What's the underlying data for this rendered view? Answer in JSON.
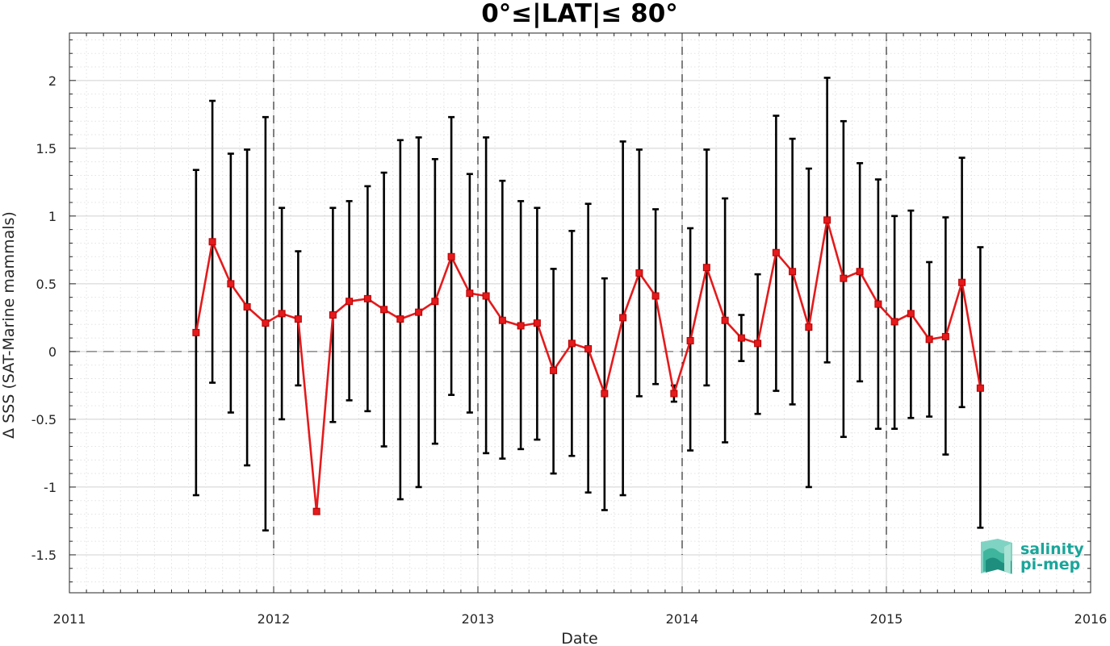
{
  "chart_data": {
    "type": "line",
    "title": "0°≤|LAT|≤ 80°",
    "xlabel": "Date",
    "ylabel": "Δ SSS (SAT-Marine mammals)",
    "xlim": [
      2011,
      2016
    ],
    "ylim": [
      -1.78,
      2.35
    ],
    "x_ticks": [
      "2011",
      "2012",
      "2013",
      "2014",
      "2015",
      "2016"
    ],
    "y_ticks": [
      "-1.5",
      "-1",
      "-0.5",
      "0",
      "0.5",
      "1",
      "1.5",
      "2"
    ],
    "grid": "on",
    "series": [
      {
        "color": "#e41a1c",
        "marker": "square",
        "x": [
          2011.62,
          2011.7,
          2011.79,
          2011.87,
          2011.96,
          2012.04,
          2012.12,
          2012.21,
          2012.29,
          2012.37,
          2012.46,
          2012.54,
          2012.62,
          2012.71,
          2012.79,
          2012.87,
          2012.96,
          2013.04,
          2013.12,
          2013.21,
          2013.29,
          2013.37,
          2013.46,
          2013.54,
          2013.62,
          2013.71,
          2013.79,
          2013.87,
          2013.96,
          2014.04,
          2014.12,
          2014.21,
          2014.29,
          2014.37,
          2014.46,
          2014.54,
          2014.62,
          2014.71,
          2014.79,
          2014.87,
          2014.96,
          2015.04,
          2015.12,
          2015.21,
          2015.29,
          2015.37,
          2015.46
        ],
        "y": [
          0.14,
          0.81,
          0.5,
          0.33,
          0.21,
          0.28,
          0.24,
          -1.18,
          0.27,
          0.37,
          0.39,
          0.31,
          0.24,
          0.29,
          0.37,
          0.7,
          0.43,
          0.41,
          0.23,
          0.19,
          0.21,
          -0.14,
          0.06,
          0.02,
          -0.31,
          0.25,
          0.58,
          0.41,
          -0.31,
          0.08,
          0.62,
          0.23,
          0.1,
          0.06,
          0.73,
          0.59,
          0.18,
          0.97,
          0.54,
          0.59,
          0.35,
          0.22,
          0.28,
          0.09,
          0.11,
          0.51,
          -0.27
        ],
        "err_low": [
          -1.06,
          -0.23,
          -0.45,
          -0.84,
          -1.32,
          -0.5,
          -0.25,
          -1.18,
          -0.52,
          -0.36,
          -0.44,
          -0.7,
          -1.09,
          -1.0,
          -0.68,
          -0.32,
          -0.45,
          -0.75,
          -0.79,
          -0.72,
          -0.65,
          -0.9,
          -0.77,
          -1.04,
          -1.17,
          -1.06,
          -0.33,
          -0.24,
          -0.37,
          -0.73,
          -0.25,
          -0.67,
          -0.07,
          -0.46,
          -0.29,
          -0.39,
          -1.0,
          -0.08,
          -0.63,
          -0.22,
          -0.57,
          -0.57,
          -0.49,
          -0.48,
          -0.76,
          -0.41,
          -1.3
        ],
        "err_high": [
          1.34,
          1.85,
          1.46,
          1.49,
          1.73,
          1.06,
          0.74,
          -1.18,
          1.06,
          1.11,
          1.22,
          1.32,
          1.56,
          1.58,
          1.42,
          1.73,
          1.31,
          1.58,
          1.26,
          1.11,
          1.06,
          0.61,
          0.89,
          1.09,
          0.54,
          1.55,
          1.49,
          1.05,
          -0.25,
          0.91,
          1.49,
          1.13,
          0.27,
          0.57,
          1.74,
          1.57,
          1.35,
          2.02,
          1.7,
          1.39,
          1.27,
          1.0,
          1.04,
          0.66,
          0.99,
          1.43,
          0.77
        ]
      }
    ],
    "year_divider_lines": [
      2012,
      2013,
      2014,
      2015
    ],
    "zero_reference_line": 0
  },
  "logo": {
    "line1": "salinity",
    "line2": "pi-mep",
    "color": "#1aa59a"
  }
}
